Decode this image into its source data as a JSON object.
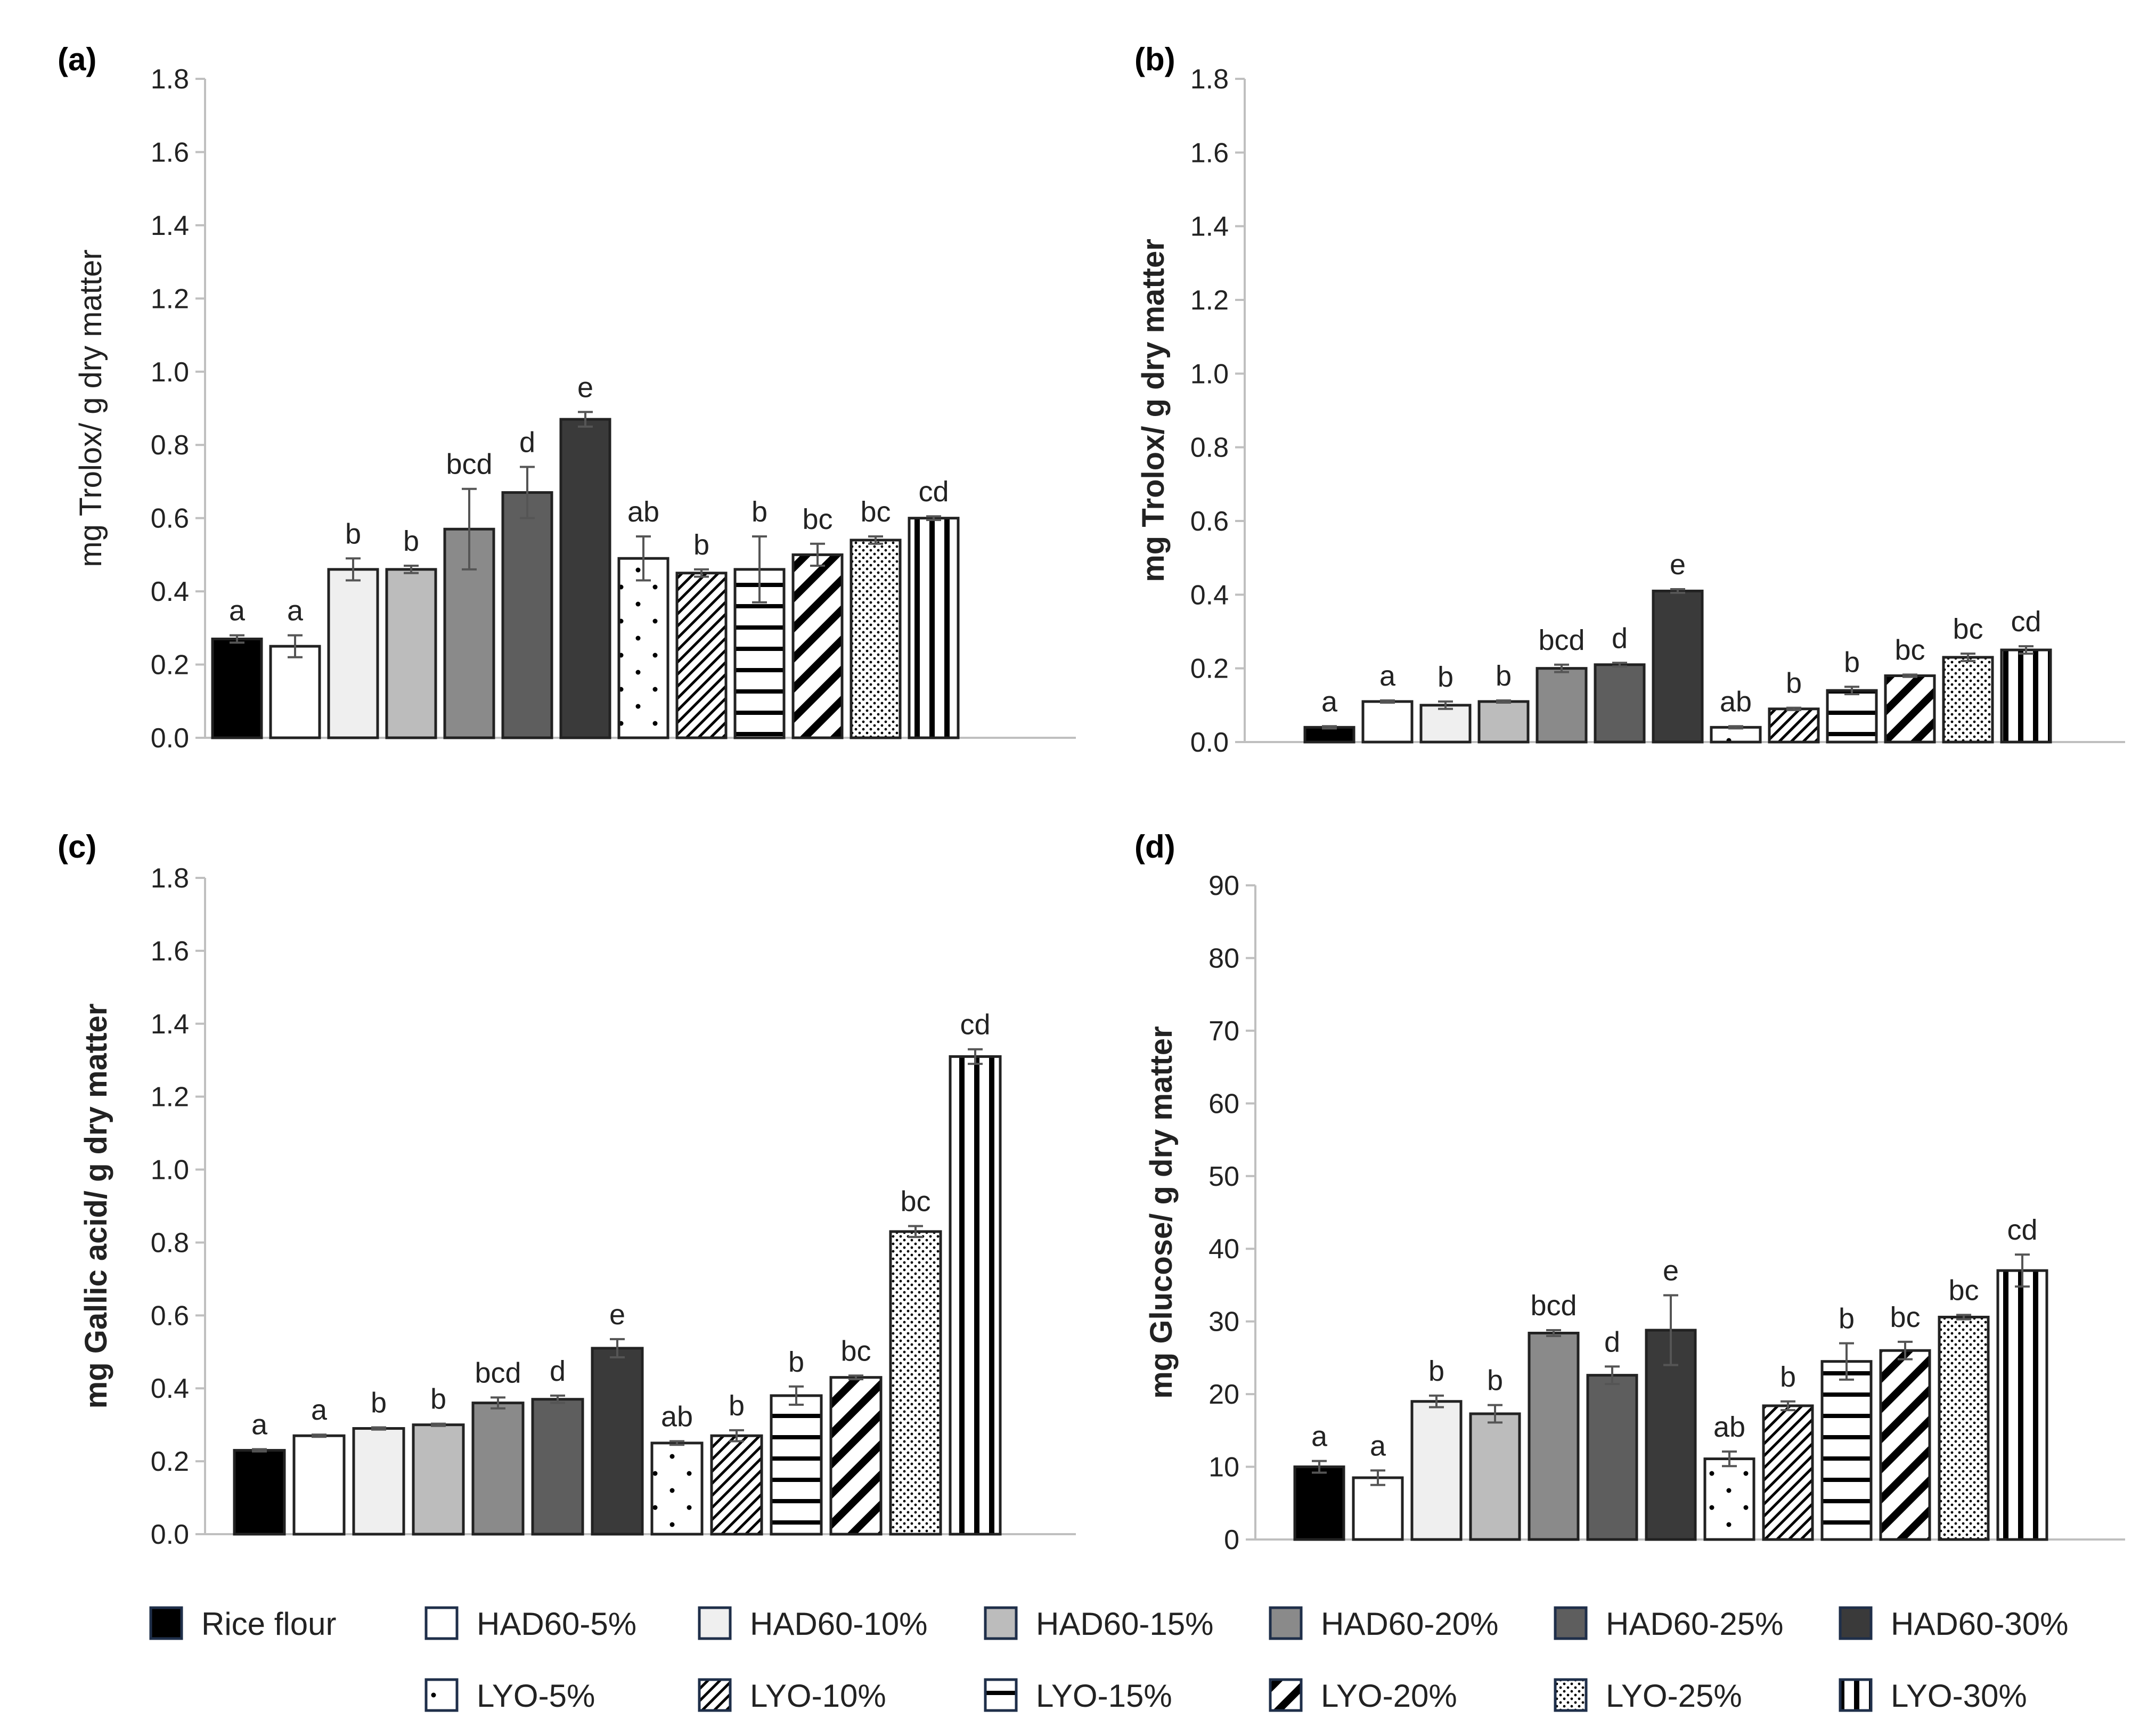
{
  "legend": [
    {
      "label": "Rice flour",
      "fill": "#000000",
      "pattern": "solid"
    },
    {
      "label": "HAD60-5%",
      "fill": "#ffffff",
      "pattern": "solid"
    },
    {
      "label": "HAD60-10%",
      "fill": "#efefef",
      "pattern": "solid"
    },
    {
      "label": "HAD60-15%",
      "fill": "#bcbcbc",
      "pattern": "solid"
    },
    {
      "label": "HAD60-20%",
      "fill": "#8a8a8a",
      "pattern": "solid"
    },
    {
      "label": "HAD60-25%",
      "fill": "#5e5e5e",
      "pattern": "solid"
    },
    {
      "label": "HAD60-30%",
      "fill": "#3a3a3a",
      "pattern": "solid"
    },
    {
      "label": "LYO-5%",
      "fill": "#ffffff",
      "pattern": "dots"
    },
    {
      "label": "LYO-10%",
      "fill": "#ffffff",
      "pattern": "diag-thin"
    },
    {
      "label": "LYO-15%",
      "fill": "#ffffff",
      "pattern": "horizontal"
    },
    {
      "label": "LYO-20%",
      "fill": "#ffffff",
      "pattern": "diag-thick"
    },
    {
      "label": "LYO-25%",
      "fill": "#ffffff",
      "pattern": "dense-dots"
    },
    {
      "label": "LYO-30%",
      "fill": "#ffffff",
      "pattern": "vertical"
    }
  ],
  "colors": {
    "axis": "#bfbfbf",
    "error_bar": "#555555",
    "bar_edge": "#222222"
  },
  "chart_data": [
    {
      "panel": "(a)",
      "type": "bar",
      "ylabel": "mg Trolox/ g dry matter",
      "ylabel_bold": false,
      "ylim": [
        0,
        1.8
      ],
      "ytick_step": 0.2,
      "ytick_decimals": 1,
      "categories": [
        "Rice flour",
        "HAD60-5%",
        "HAD60-10%",
        "HAD60-15%",
        "HAD60-20%",
        "HAD60-25%",
        "HAD60-30%",
        "LYO-5%",
        "LYO-10%",
        "LYO-15%",
        "LYO-20%",
        "LYO-25%",
        "LYO-30%"
      ],
      "values": [
        0.27,
        0.25,
        0.46,
        0.46,
        0.57,
        0.67,
        0.87,
        0.49,
        0.45,
        0.46,
        0.5,
        0.54,
        0.6
      ],
      "errors": [
        0.01,
        0.03,
        0.03,
        0.01,
        0.11,
        0.07,
        0.02,
        0.06,
        0.01,
        0.09,
        0.03,
        0.01,
        0.005
      ],
      "letters": [
        "a",
        "a",
        "b",
        "b",
        "bcd",
        "d",
        "e",
        "ab",
        "b",
        "b",
        "bc",
        "bc",
        "cd"
      ]
    },
    {
      "panel": "(b)",
      "type": "bar",
      "ylabel": "mg Trolox/ g dry matter",
      "ylabel_bold": true,
      "ylim": [
        0,
        1.8
      ],
      "ytick_step": 0.2,
      "ytick_decimals": 1,
      "categories": [
        "Rice flour",
        "HAD60-5%",
        "HAD60-10%",
        "HAD60-15%",
        "HAD60-20%",
        "HAD60-25%",
        "HAD60-30%",
        "LYO-5%",
        "LYO-10%",
        "LYO-15%",
        "LYO-20%",
        "LYO-25%",
        "LYO-30%"
      ],
      "values": [
        0.04,
        0.11,
        0.1,
        0.11,
        0.2,
        0.21,
        0.41,
        0.04,
        0.09,
        0.14,
        0.18,
        0.23,
        0.25
      ],
      "errors": [
        0.003,
        0.003,
        0.01,
        0.003,
        0.01,
        0.005,
        0.005,
        0.003,
        0.003,
        0.01,
        0.003,
        0.01,
        0.01
      ],
      "letters": [
        "a",
        "a",
        "b",
        "b",
        "bcd",
        "d",
        "e",
        "ab",
        "b",
        "b",
        "bc",
        "bc",
        "cd"
      ]
    },
    {
      "panel": "(c)",
      "type": "bar",
      "ylabel": "mg Gallic acid/ g dry matter",
      "ylabel_bold": true,
      "ylim": [
        0,
        1.8
      ],
      "ytick_step": 0.2,
      "ytick_decimals": 1,
      "categories": [
        "Rice flour",
        "HAD60-5%",
        "HAD60-10%",
        "HAD60-15%",
        "HAD60-20%",
        "HAD60-25%",
        "HAD60-30%",
        "LYO-5%",
        "LYO-10%",
        "LYO-15%",
        "LYO-20%",
        "LYO-25%",
        "LYO-30%"
      ],
      "values": [
        0.23,
        0.27,
        0.29,
        0.3,
        0.36,
        0.37,
        0.51,
        0.25,
        0.27,
        0.38,
        0.43,
        0.83,
        1.31
      ],
      "errors": [
        0.003,
        0.003,
        0.003,
        0.003,
        0.015,
        0.01,
        0.025,
        0.005,
        0.015,
        0.025,
        0.005,
        0.015,
        0.02
      ],
      "letters": [
        "a",
        "a",
        "b",
        "b",
        "bcd",
        "d",
        "e",
        "ab",
        "b",
        "b",
        "bc",
        "bc",
        "cd"
      ]
    },
    {
      "panel": "(d)",
      "type": "bar",
      "ylabel": "mg Glucose/ g dry matter",
      "ylabel_bold": true,
      "ylim": [
        0,
        90
      ],
      "ytick_step": 10,
      "ytick_decimals": 0,
      "categories": [
        "Rice flour",
        "HAD60-5%",
        "HAD60-10%",
        "HAD60-15%",
        "HAD60-20%",
        "HAD60-25%",
        "HAD60-30%",
        "LYO-5%",
        "LYO-10%",
        "LYO-15%",
        "LYO-20%",
        "LYO-25%",
        "LYO-30%"
      ],
      "values": [
        10.0,
        8.5,
        19.0,
        17.3,
        28.4,
        22.6,
        28.8,
        11.1,
        18.4,
        24.5,
        26.0,
        30.6,
        37.0
      ],
      "errors": [
        0.8,
        1.0,
        0.8,
        1.2,
        0.4,
        1.2,
        4.8,
        1.0,
        0.6,
        2.5,
        1.2,
        0.3,
        2.2
      ],
      "letters": [
        "a",
        "a",
        "b",
        "b",
        "bcd",
        "d",
        "e",
        "ab",
        "b",
        "b",
        "bc",
        "bc",
        "cd"
      ]
    }
  ]
}
